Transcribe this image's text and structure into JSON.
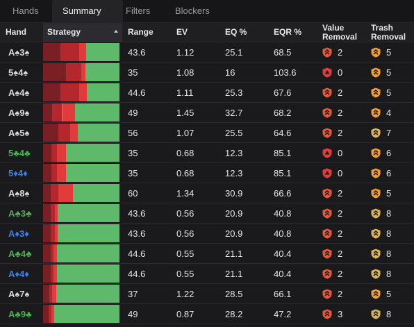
{
  "tabs": [
    {
      "label": "Hands",
      "active": false
    },
    {
      "label": "Summary",
      "active": true
    },
    {
      "label": "Filters",
      "active": false
    },
    {
      "label": "Blockers",
      "active": false
    }
  ],
  "columns": {
    "hand": "Hand",
    "strategy": "Strategy",
    "range": "Range",
    "ev": "EV",
    "eq": "EQ %",
    "eqr": "EQR %",
    "value_removal_1": "Value",
    "value_removal_2": "Removal",
    "trash_removal_1": "Trash",
    "trash_removal_2": "Removal"
  },
  "colors": {
    "suit_spade": "#d8d8d8",
    "suit_club": "#4caf50",
    "suit_diamond": "#3d7fe6",
    "strategy_dark": "#7a1f24",
    "strategy_mid": "#b3272d",
    "strategy_bright": "#e23b3b",
    "strategy_check": "#5fb96a",
    "value_shield": "#e8593a",
    "value_shield_zero": "#e23b3b",
    "trash_shield_orange": "#f0a030",
    "trash_shield_yellow": "#d8b45a"
  },
  "rows": [
    {
      "hand": "A♠3♠",
      "suit": "spade",
      "strategy": [
        0.23,
        0.24,
        0.09
      ],
      "range": "43.6",
      "ev": "1.12",
      "eq": "25.1",
      "eqr": "68.5",
      "value": "2",
      "value_icon": "value",
      "trash": "5",
      "trash_icon": "orange"
    },
    {
      "hand": "5♠4♠",
      "suit": "spade",
      "strategy": [
        0.3,
        0.2,
        0.05
      ],
      "range": "35",
      "ev": "1.08",
      "eq": "16",
      "eqr": "103.6",
      "value": "0",
      "value_icon": "zero",
      "trash": "5",
      "trash_icon": "orange"
    },
    {
      "hand": "A♠4♠",
      "suit": "spade",
      "strategy": [
        0.23,
        0.24,
        0.1
      ],
      "range": "44.6",
      "ev": "1.11",
      "eq": "25.3",
      "eqr": "67.6",
      "value": "2",
      "value_icon": "value",
      "trash": "5",
      "trash_icon": "orange"
    },
    {
      "hand": "A♠9♠",
      "suit": "spade",
      "strategy": [
        0.12,
        0.13,
        0.17
      ],
      "range": "49",
      "ev": "1.45",
      "eq": "32.7",
      "eqr": "68.2",
      "value": "2",
      "value_icon": "value",
      "trash": "4",
      "trash_icon": "orange"
    },
    {
      "hand": "A♠5♠",
      "suit": "spade",
      "strategy": [
        0.2,
        0.15,
        0.1
      ],
      "range": "56",
      "ev": "1.07",
      "eq": "25.5",
      "eqr": "64.6",
      "value": "2",
      "value_icon": "value",
      "trash": "7",
      "trash_icon": "yellow"
    },
    {
      "hand": "5♣4♣",
      "suit": "club",
      "strategy": [
        0.11,
        0.07,
        0.12
      ],
      "range": "35",
      "ev": "0.68",
      "eq": "12.3",
      "eqr": "85.1",
      "value": "0",
      "value_icon": "zero",
      "trash": "6",
      "trash_icon": "orange"
    },
    {
      "hand": "5♦4♦",
      "suit": "diamond",
      "strategy": [
        0.11,
        0.07,
        0.12
      ],
      "range": "35",
      "ev": "0.68",
      "eq": "12.3",
      "eqr": "85.1",
      "value": "0",
      "value_icon": "zero",
      "trash": "6",
      "trash_icon": "orange"
    },
    {
      "hand": "A♠8♠",
      "suit": "spade",
      "strategy": [
        0.1,
        0.1,
        0.19
      ],
      "range": "60",
      "ev": "1.34",
      "eq": "30.9",
      "eqr": "66.6",
      "value": "2",
      "value_icon": "value",
      "trash": "5",
      "trash_icon": "orange"
    },
    {
      "hand": "A♣3♣",
      "suit": "club",
      "strategy": [
        0.1,
        0.05,
        0.04
      ],
      "range": "43.6",
      "ev": "0.56",
      "eq": "20.9",
      "eqr": "40.8",
      "value": "2",
      "value_icon": "value",
      "trash": "8",
      "trash_icon": "yellow"
    },
    {
      "hand": "A♦3♦",
      "suit": "diamond",
      "strategy": [
        0.1,
        0.05,
        0.04
      ],
      "range": "43.6",
      "ev": "0.56",
      "eq": "20.9",
      "eqr": "40.8",
      "value": "2",
      "value_icon": "value",
      "trash": "8",
      "trash_icon": "yellow"
    },
    {
      "hand": "A♣4♣",
      "suit": "club",
      "strategy": [
        0.1,
        0.04,
        0.04
      ],
      "range": "44.6",
      "ev": "0.55",
      "eq": "21.1",
      "eqr": "40.4",
      "value": "2",
      "value_icon": "value",
      "trash": "8",
      "trash_icon": "yellow"
    },
    {
      "hand": "A♦4♦",
      "suit": "diamond",
      "strategy": [
        0.1,
        0.04,
        0.04
      ],
      "range": "44.6",
      "ev": "0.55",
      "eq": "21.1",
      "eqr": "40.4",
      "value": "2",
      "value_icon": "value",
      "trash": "8",
      "trash_icon": "yellow"
    },
    {
      "hand": "A♠7♠",
      "suit": "spade",
      "strategy": [
        0.08,
        0.04,
        0.05
      ],
      "range": "37",
      "ev": "1.22",
      "eq": "28.5",
      "eqr": "66.1",
      "value": "2",
      "value_icon": "value",
      "trash": "5",
      "trash_icon": "orange"
    },
    {
      "hand": "A♣9♣",
      "suit": "club",
      "strategy": [
        0.07,
        0.04,
        0.04
      ],
      "range": "49",
      "ev": "0.87",
      "eq": "28.2",
      "eqr": "47.2",
      "value": "3",
      "value_icon": "value",
      "trash": "8",
      "trash_icon": "yellow"
    }
  ]
}
